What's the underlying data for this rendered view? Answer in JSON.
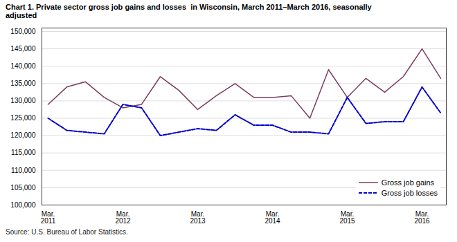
{
  "chart_data": {
    "type": "line",
    "title": "Chart 1. Private sector gross job gains and losses  in Wisconsin, March 2011–March 2016, seasonally\nadjusted",
    "source": "Source: U.S. Bureau of Labor Statistics.",
    "categories": [
      "Mar.\n2011",
      null,
      null,
      null,
      "Mar.\n2012",
      null,
      null,
      null,
      "Mar.\n2013",
      null,
      null,
      null,
      "Mar.\n2014",
      null,
      null,
      null,
      "Mar.\n2015",
      null,
      null,
      null,
      "Mar.\n2016",
      null
    ],
    "series": [
      {
        "name": "Gross job gains",
        "color": "#7B3B5E",
        "line_style": "solid",
        "values": [
          129000,
          134000,
          135500,
          131000,
          128000,
          129000,
          137000,
          133000,
          127500,
          131500,
          135000,
          131000,
          131000,
          131500,
          125000,
          139000,
          131000,
          136500,
          132500,
          137000,
          145000,
          136500
        ]
      },
      {
        "name": "Gross job losses",
        "color": "#0000CC",
        "line_style": "dashed",
        "values": [
          125000,
          121500,
          121000,
          120500,
          129000,
          128000,
          120000,
          121000,
          122000,
          121500,
          126000,
          123000,
          123000,
          121000,
          121000,
          120500,
          131000,
          123500,
          124000,
          124000,
          134000,
          126500
        ]
      }
    ],
    "ylim": [
      100000,
      151000
    ],
    "yticks": [
      {
        "value": 100000,
        "label": "100,000"
      },
      {
        "value": 105000,
        "label": "105,000"
      },
      {
        "value": 110000,
        "label": "110,000"
      },
      {
        "value": 115000,
        "label": "115,000"
      },
      {
        "value": 120000,
        "label": "120,000"
      },
      {
        "value": 125000,
        "label": "125,000"
      },
      {
        "value": 130000,
        "label": "130,000"
      },
      {
        "value": 135000,
        "label": "135,000"
      },
      {
        "value": 140000,
        "label": "140,000"
      },
      {
        "value": 145000,
        "label": "145,000"
      },
      {
        "value": 150000,
        "label": "150,000"
      }
    ],
    "grid": true,
    "legend": "lower right"
  }
}
